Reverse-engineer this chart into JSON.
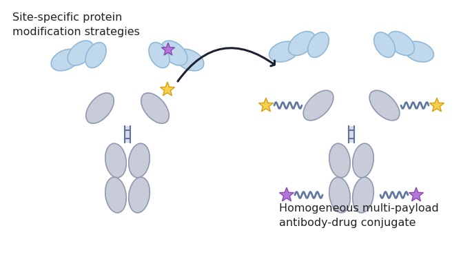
{
  "bg_color": "#ffffff",
  "ab_body_color": "#c8ccd8",
  "ab_body_edge": "#9098b0",
  "ab_body_lw": 1.2,
  "fab_color": "#c0d8ec",
  "fab_edge": "#90b8d8",
  "fab_lw": 1.2,
  "hinge_color": "#6070a0",
  "hinge_lw": 1.5,
  "hinge_fill": "#d8dce8",
  "star_yellow_fill": "#f8d050",
  "star_yellow_edge": "#d4a010",
  "star_purple_fill": "#b878d8",
  "star_purple_edge": "#8848b0",
  "wave_color": "#6078a0",
  "wave_lw": 2.0,
  "arrow_color": "#1c2030",
  "arrow_lw": 2.2,
  "text_color": "#222222",
  "label_left": "Site-specific protein\nmodification strategies",
  "label_right": "Homogeneous multi-payload\nantibody-drug conjugate",
  "label_fontsize": 11.5,
  "fig_width": 6.85,
  "fig_height": 3.73,
  "dpi": 100
}
